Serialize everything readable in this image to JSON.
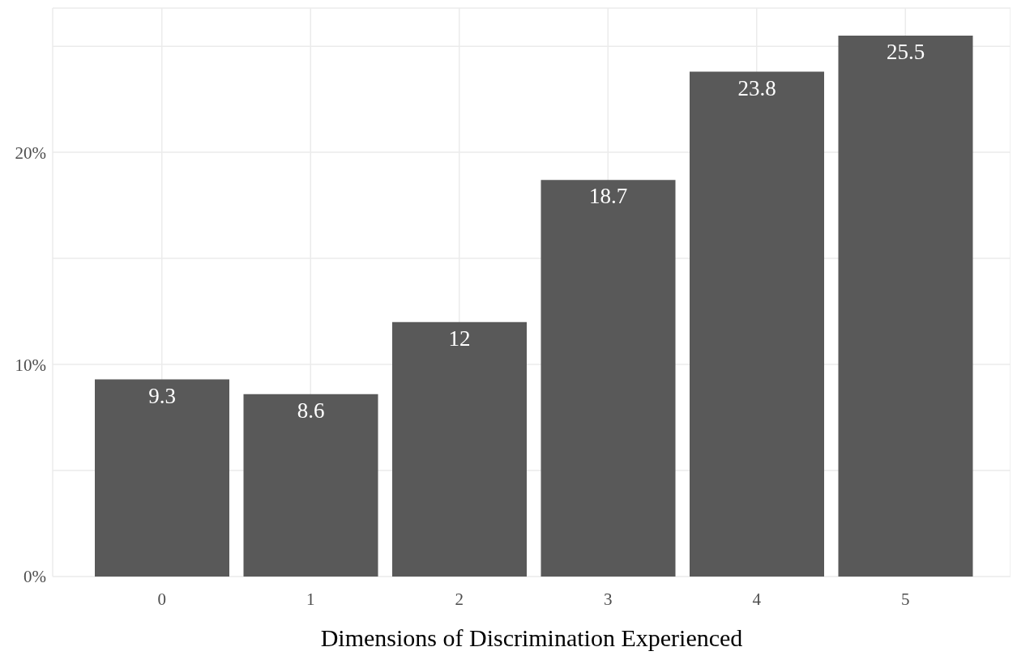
{
  "chart_data": {
    "type": "bar",
    "xlabel": "Dimensions of Discrimination Experienced",
    "categories": [
      "0",
      "1",
      "2",
      "3",
      "4",
      "5"
    ],
    "values": [
      9.3,
      8.6,
      12,
      18.7,
      23.8,
      25.5
    ],
    "color": "#595959",
    "ylim": [
      0,
      26.8
    ],
    "yticks": [
      {
        "value": 0,
        "label": "0%"
      },
      {
        "value": 5,
        "label": null
      },
      {
        "value": 10,
        "label": "10%"
      },
      {
        "value": 15,
        "label": null
      },
      {
        "value": 20,
        "label": "20%"
      },
      {
        "value": 25,
        "label": null
      }
    ],
    "grid": true,
    "data_labels": true
  }
}
